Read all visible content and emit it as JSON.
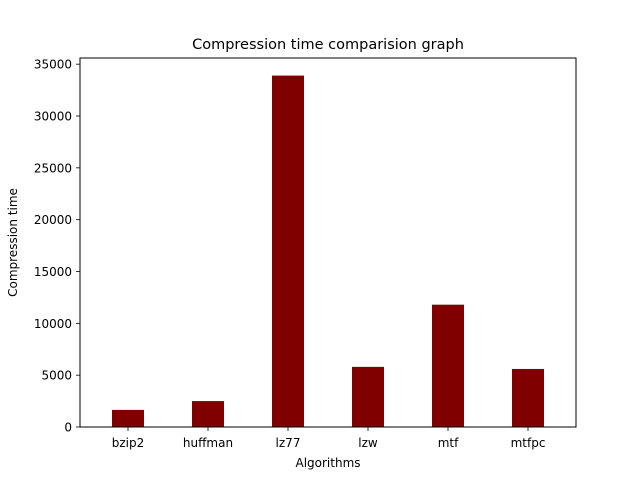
{
  "chart_data": {
    "type": "bar",
    "title": "Compression time comparision graph",
    "xlabel": "Algorithms",
    "ylabel": "Compression time",
    "categories": [
      "bzip2",
      "huffman",
      "lz77",
      "lzw",
      "mtf",
      "mtfpc"
    ],
    "values": [
      1650,
      2500,
      33900,
      5800,
      11800,
      5600
    ],
    "ylim": [
      0,
      35595
    ],
    "yticks": [
      0,
      5000,
      10000,
      15000,
      20000,
      25000,
      30000,
      35000
    ],
    "bar_color": "#800000",
    "grid": false,
    "legend": "none"
  }
}
